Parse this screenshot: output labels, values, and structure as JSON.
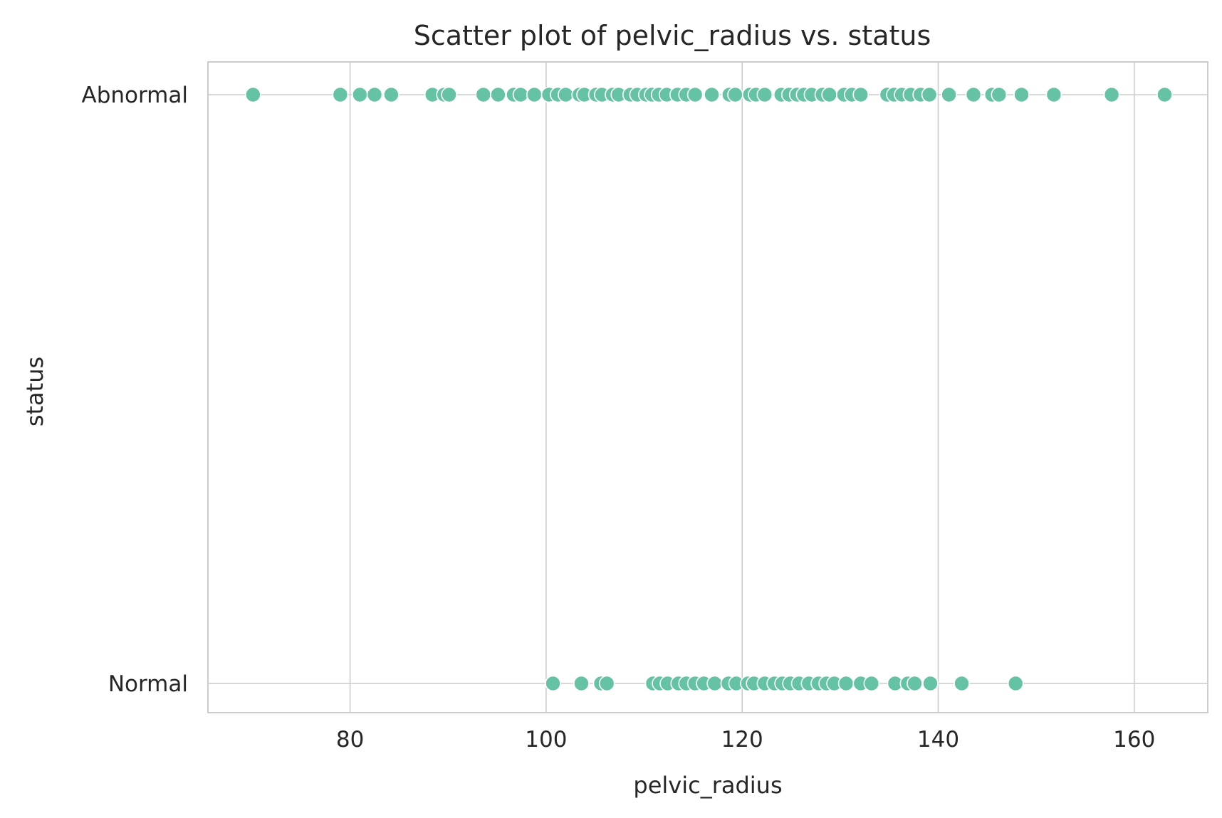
{
  "chart_data": {
    "type": "scatter",
    "title": "Scatter plot of pelvic_radius vs. status",
    "xlabel": "pelvic_radius",
    "ylabel": "status",
    "xlim": [
      65.5,
      167.5
    ],
    "xticks": [
      80,
      100,
      120,
      140,
      160
    ],
    "categories": [
      "Abnormal",
      "Normal"
    ],
    "grid": true,
    "color": "#66c2a5",
    "series": [
      {
        "category": "Abnormal",
        "x": [
          70.1,
          79.0,
          81.0,
          82.5,
          84.2,
          88.4,
          89.6,
          90.1,
          93.6,
          95.1,
          96.7,
          97.4,
          98.8,
          100.3,
          101.2,
          102.0,
          103.4,
          103.9,
          105.1,
          105.7,
          106.8,
          107.4,
          108.6,
          109.3,
          110.2,
          110.8,
          111.5,
          112.3,
          113.4,
          114.3,
          115.2,
          116.9,
          118.7,
          119.3,
          120.8,
          121.4,
          122.3,
          124.0,
          124.8,
          125.6,
          126.3,
          127.1,
          128.2,
          128.9,
          130.4,
          131.2,
          132.1,
          134.8,
          135.5,
          136.3,
          137.2,
          138.2,
          139.1,
          141.1,
          143.6,
          145.5,
          146.2,
          148.5,
          151.8,
          157.7,
          163.1
        ]
      },
      {
        "category": "Normal",
        "x": [
          100.7,
          103.6,
          105.6,
          106.2,
          110.9,
          111.6,
          112.4,
          113.5,
          114.3,
          115.2,
          116.1,
          117.2,
          118.6,
          119.4,
          120.6,
          121.2,
          122.3,
          123.3,
          124.1,
          124.9,
          125.8,
          126.8,
          127.8,
          128.6,
          129.4,
          130.6,
          132.1,
          133.2,
          135.6,
          136.9,
          137.6,
          139.2,
          142.4,
          147.9
        ]
      }
    ]
  }
}
